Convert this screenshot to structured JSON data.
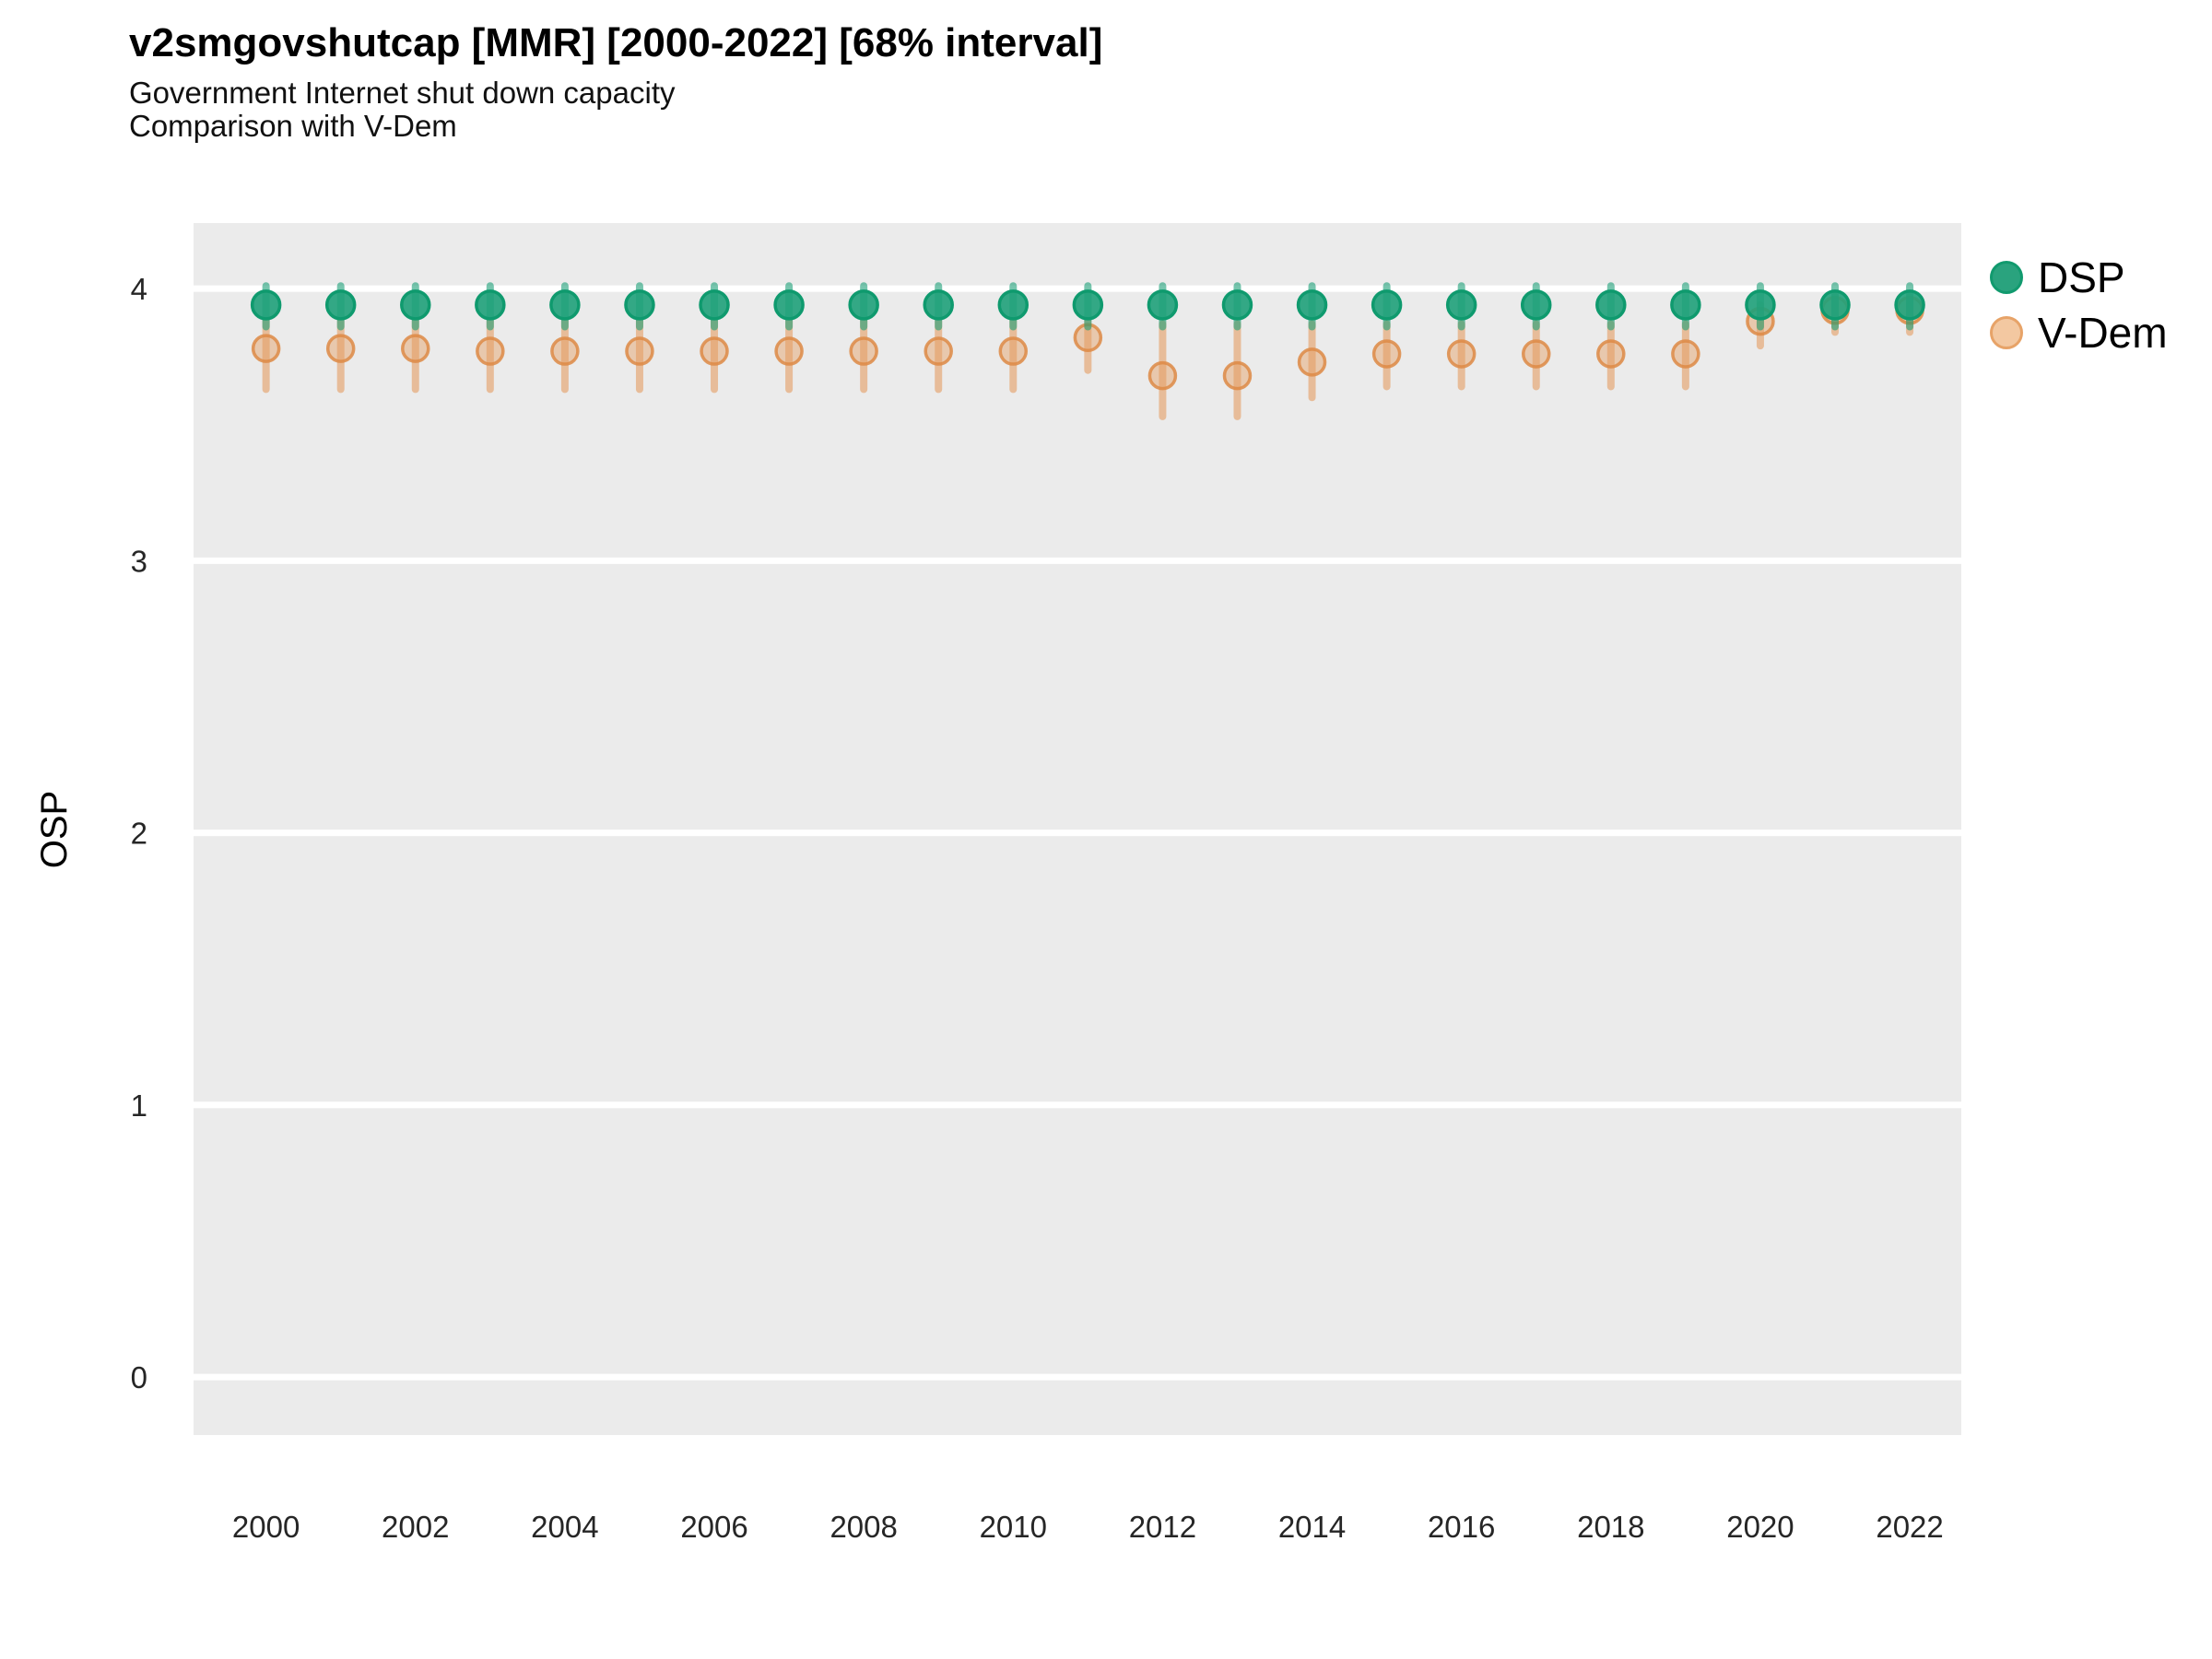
{
  "header": {
    "title": "v2smgovshutcap [MMR] [2000-2022] [68% interval]",
    "subtitle1": "Government Internet shut down capacity",
    "subtitle2": "Comparison with V-Dem"
  },
  "colors": {
    "panel_background": "#ebebeb",
    "gridline": "#ffffff",
    "axis_text": "#262626",
    "dsp_green": "#1b9e77",
    "dsp_point_fill": "#1fa17a",
    "dsp_point_stroke": "#0f9a6e",
    "vdem_orange": "#e59d62",
    "vdem_point_stroke": "#dd8a45"
  },
  "chart_data": {
    "type": "pointrange-scatter",
    "title": "v2smgovshutcap [MMR] [2000-2022] [68% interval]",
    "subtitle": [
      "Government Internet shut down capacity",
      "Comparison with V-Dem"
    ],
    "xlabel": "",
    "ylabel": "OSP",
    "interval": "68%",
    "country": "MMR",
    "x": [
      2000,
      2001,
      2002,
      2003,
      2004,
      2005,
      2006,
      2007,
      2008,
      2009,
      2010,
      2011,
      2012,
      2013,
      2014,
      2015,
      2016,
      2017,
      2018,
      2019,
      2020,
      2021,
      2022
    ],
    "series": [
      {
        "name": "DSP",
        "bar_color": "#1b9e77",
        "point_fill": "#1fa17a",
        "point_stroke": "#0f9a6e",
        "values": [
          3.94,
          3.94,
          3.94,
          3.94,
          3.94,
          3.94,
          3.94,
          3.94,
          3.94,
          3.94,
          3.94,
          3.94,
          3.94,
          3.94,
          3.94,
          3.94,
          3.94,
          3.94,
          3.94,
          3.94,
          3.94,
          3.94,
          3.94
        ],
        "lo": [
          3.86,
          3.86,
          3.86,
          3.86,
          3.86,
          3.86,
          3.86,
          3.86,
          3.86,
          3.86,
          3.86,
          3.86,
          3.86,
          3.86,
          3.86,
          3.86,
          3.86,
          3.86,
          3.86,
          3.86,
          3.86,
          3.86,
          3.86
        ],
        "hi": [
          4.01,
          4.01,
          4.01,
          4.01,
          4.01,
          4.01,
          4.01,
          4.01,
          4.01,
          4.01,
          4.01,
          4.01,
          4.01,
          4.01,
          4.01,
          4.01,
          4.01,
          4.01,
          4.01,
          4.01,
          4.01,
          4.01,
          4.01
        ]
      },
      {
        "name": "V-Dem",
        "bar_color": "#e59d62",
        "point_fill": "#e59d62",
        "point_stroke": "#dd8a45",
        "values": [
          3.78,
          3.78,
          3.78,
          3.77,
          3.77,
          3.77,
          3.77,
          3.77,
          3.77,
          3.77,
          3.77,
          3.82,
          3.68,
          3.68,
          3.73,
          3.76,
          3.76,
          3.76,
          3.76,
          3.76,
          3.88,
          3.92,
          3.92
        ],
        "lo": [
          3.63,
          3.63,
          3.63,
          3.63,
          3.63,
          3.63,
          3.63,
          3.63,
          3.63,
          3.63,
          3.63,
          3.7,
          3.53,
          3.53,
          3.6,
          3.64,
          3.64,
          3.64,
          3.64,
          3.64,
          3.79,
          3.84,
          3.84
        ],
        "hi": [
          3.88,
          3.88,
          3.88,
          3.88,
          3.88,
          3.88,
          3.88,
          3.88,
          3.88,
          3.88,
          3.88,
          3.88,
          3.87,
          3.87,
          3.87,
          3.87,
          3.87,
          3.87,
          3.87,
          3.87,
          3.94,
          3.97,
          3.97
        ]
      }
    ],
    "x_tick_values": [
      2000,
      2002,
      2004,
      2006,
      2008,
      2010,
      2012,
      2014,
      2016,
      2018,
      2020,
      2022
    ],
    "x_tick_labels": [
      "2000",
      "2002",
      "2004",
      "2006",
      "2008",
      "2010",
      "2012",
      "2014",
      "2016",
      "2018",
      "2020",
      "2022"
    ],
    "y_tick_values": [
      0,
      1,
      2,
      3,
      4
    ],
    "y_tick_labels": [
      "0",
      "1",
      "2",
      "3",
      "4"
    ],
    "x_range": [
      1999.03,
      2022.69
    ],
    "y_range": [
      -0.213,
      4.241
    ],
    "grid": "major-horizontal-white-on-gray",
    "legend_position": "right-top"
  },
  "legend": {
    "dsp_label": "DSP",
    "vdem_label": "V-Dem"
  }
}
